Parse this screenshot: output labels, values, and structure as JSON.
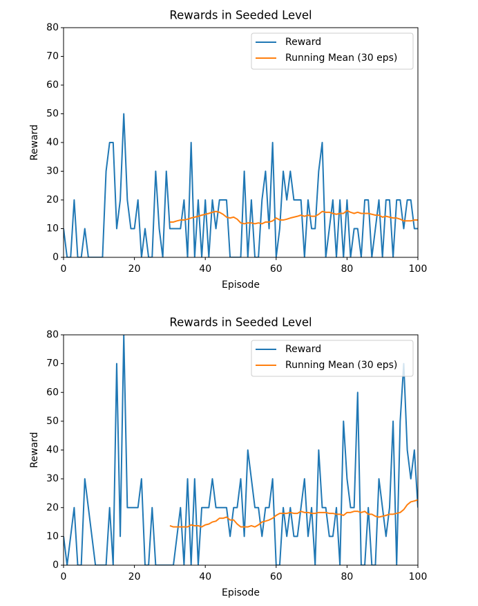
{
  "chart_data": [
    {
      "type": "line",
      "title": "Rewards in Seeded Level",
      "xlabel": "Episode",
      "ylabel": "Reward",
      "x": [
        0,
        1,
        2,
        3,
        4,
        5,
        6,
        7,
        8,
        9,
        10,
        11,
        12,
        13,
        14,
        15,
        16,
        17,
        18,
        19,
        20,
        21,
        22,
        23,
        24,
        25,
        26,
        27,
        28,
        29,
        30,
        31,
        32,
        33,
        34,
        35,
        36,
        37,
        38,
        39,
        40,
        41,
        42,
        43,
        44,
        45,
        46,
        47,
        48,
        49,
        50,
        51,
        52,
        53,
        54,
        55,
        56,
        57,
        58,
        59,
        60,
        61,
        62,
        63,
        64,
        65,
        66,
        67,
        68,
        69,
        70,
        71,
        72,
        73,
        74,
        75,
        76,
        77,
        78,
        79,
        80,
        81,
        82,
        83,
        84,
        85,
        86,
        87,
        88,
        89,
        90,
        91,
        92,
        93,
        94,
        95,
        96,
        97,
        98,
        99,
        100
      ],
      "series": [
        {
          "name": "Reward",
          "color": "#1f77b4",
          "values": [
            10,
            0,
            0,
            20,
            0,
            0,
            10,
            0,
            0,
            0,
            0,
            0,
            30,
            40,
            40,
            10,
            20,
            50,
            20,
            10,
            10,
            20,
            0,
            10,
            0,
            0,
            30,
            10,
            0,
            30,
            10,
            10,
            10,
            10,
            20,
            0,
            40,
            0,
            20,
            0,
            20,
            0,
            20,
            10,
            20,
            20,
            20,
            0,
            0,
            0,
            0,
            30,
            0,
            20,
            0,
            0,
            20,
            30,
            10,
            40,
            0,
            10,
            30,
            20,
            30,
            20,
            20,
            20,
            0,
            20,
            10,
            10,
            30,
            40,
            0,
            10,
            20,
            0,
            20,
            0,
            20,
            0,
            10,
            10,
            0,
            20,
            20,
            0,
            10,
            20,
            0,
            20,
            20,
            0,
            20,
            20,
            10,
            20,
            20,
            10,
            10
          ]
        },
        {
          "name": "Running Mean (30 eps)",
          "color": "#ff7f0e",
          "values": [
            null,
            null,
            null,
            null,
            null,
            null,
            null,
            null,
            null,
            null,
            null,
            null,
            null,
            null,
            null,
            null,
            null,
            null,
            null,
            null,
            null,
            null,
            null,
            null,
            null,
            null,
            null,
            null,
            null,
            null,
            12.3,
            12.3,
            12.7,
            13,
            13,
            13.3,
            13.7,
            14,
            14.3,
            14.7,
            15,
            15.3,
            15.7,
            16,
            15.7,
            15,
            14,
            13.7,
            14,
            13.3,
            12,
            11.7,
            12,
            12,
            11.7,
            12,
            11.7,
            12.3,
            12.3,
            12.7,
            13.7,
            13,
            13,
            13.3,
            13.7,
            14,
            14.3,
            14.7,
            14.3,
            14.7,
            14.3,
            14.3,
            15,
            16,
            15.7,
            15.7,
            15.3,
            15,
            15.3,
            15.3,
            16.3,
            15.7,
            15.3,
            15.7,
            15.3,
            15.3,
            15.3,
            15,
            14.7,
            14.7,
            14,
            14.3,
            14,
            13.7,
            13.7,
            13.3,
            12.7,
            12.7,
            12.7,
            13,
            13
          ]
        }
      ],
      "xlim": [
        0,
        100
      ],
      "ylim": [
        0,
        80
      ],
      "xticks": [
        0,
        20,
        40,
        60,
        80,
        100
      ],
      "yticks": [
        0,
        10,
        20,
        30,
        40,
        50,
        60,
        70,
        80
      ],
      "legend": "upper right"
    },
    {
      "type": "line",
      "title": "Rewards in Seeded Level",
      "xlabel": "Episode",
      "ylabel": "Reward",
      "x": [
        0,
        1,
        2,
        3,
        4,
        5,
        6,
        7,
        8,
        9,
        10,
        11,
        12,
        13,
        14,
        15,
        16,
        17,
        18,
        19,
        20,
        21,
        22,
        23,
        24,
        25,
        26,
        27,
        28,
        29,
        30,
        31,
        32,
        33,
        34,
        35,
        36,
        37,
        38,
        39,
        40,
        41,
        42,
        43,
        44,
        45,
        46,
        47,
        48,
        49,
        50,
        51,
        52,
        53,
        54,
        55,
        56,
        57,
        58,
        59,
        60,
        61,
        62,
        63,
        64,
        65,
        66,
        67,
        68,
        69,
        70,
        71,
        72,
        73,
        74,
        75,
        76,
        77,
        78,
        79,
        80,
        81,
        82,
        83,
        84,
        85,
        86,
        87,
        88,
        89,
        90,
        91,
        92,
        93,
        94,
        95,
        96,
        97,
        98,
        99,
        100
      ],
      "series": [
        {
          "name": "Reward",
          "color": "#1f77b4",
          "values": [
            10,
            0,
            10,
            20,
            0,
            0,
            30,
            20,
            10,
            0,
            0,
            0,
            0,
            20,
            0,
            70,
            10,
            80,
            20,
            20,
            20,
            20,
            30,
            0,
            0,
            20,
            0,
            0,
            0,
            0,
            0,
            0,
            10,
            20,
            0,
            30,
            0,
            30,
            0,
            20,
            20,
            20,
            30,
            20,
            20,
            20,
            20,
            10,
            20,
            20,
            30,
            10,
            40,
            30,
            20,
            20,
            10,
            20,
            20,
            30,
            0,
            0,
            20,
            10,
            20,
            10,
            10,
            20,
            30,
            10,
            20,
            0,
            40,
            20,
            20,
            10,
            10,
            20,
            0,
            50,
            30,
            20,
            20,
            60,
            0,
            0,
            20,
            0,
            0,
            30,
            20,
            10,
            20,
            50,
            0,
            50,
            70,
            40,
            30,
            40,
            20
          ]
        },
        {
          "name": "Running Mean (30 eps)",
          "color": "#ff7f0e",
          "values": [
            null,
            null,
            null,
            null,
            null,
            null,
            null,
            null,
            null,
            null,
            null,
            null,
            null,
            null,
            null,
            null,
            null,
            null,
            null,
            null,
            null,
            null,
            null,
            null,
            null,
            null,
            null,
            null,
            null,
            null,
            13.7,
            13.3,
            13.3,
            13.3,
            13.3,
            13.3,
            14,
            13.7,
            13.7,
            13.3,
            14,
            14.3,
            15,
            15.3,
            16.3,
            16.3,
            16.7,
            15.7,
            15.7,
            14.3,
            13.3,
            13.3,
            13.3,
            13.7,
            13.3,
            14,
            15,
            15.3,
            15.7,
            16.3,
            17.3,
            18,
            18,
            18,
            18.3,
            18,
            18,
            18.7,
            18.3,
            18.3,
            18,
            18,
            18.3,
            18.3,
            18.3,
            18,
            18,
            17.7,
            17.7,
            17.3,
            18.3,
            18.3,
            18.7,
            18.7,
            18.3,
            18.7,
            17.7,
            17.7,
            17,
            16.7,
            17,
            17.3,
            17.7,
            17.7,
            18,
            18.3,
            19.3,
            21,
            22,
            22.3,
            22.7
          ]
        }
      ],
      "xlim": [
        0,
        100
      ],
      "ylim": [
        0,
        80
      ],
      "xticks": [
        0,
        20,
        40,
        60,
        80,
        100
      ],
      "yticks": [
        0,
        10,
        20,
        30,
        40,
        50,
        60,
        70,
        80
      ],
      "legend": "upper right"
    }
  ]
}
